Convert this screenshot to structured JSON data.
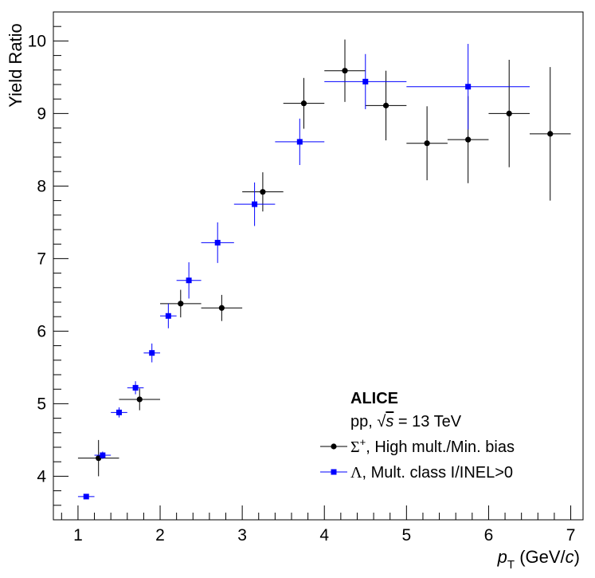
{
  "chart_data": {
    "type": "scatter",
    "title": "",
    "xlabel_main": "p",
    "xlabel_sub": "T",
    "xlabel_unit_pre": " (GeV/",
    "xlabel_unit_var": "c",
    "xlabel_unit_post": ")",
    "ylabel": "Yield Ratio",
    "xlim": [
      0.7,
      7.15
    ],
    "ylim": [
      3.4,
      10.4
    ],
    "x_major_ticks": [
      1,
      2,
      3,
      4,
      5,
      6,
      7
    ],
    "y_major_ticks": [
      4,
      5,
      6,
      7,
      8,
      9,
      10
    ],
    "x_tick_labels": [
      "1",
      "2",
      "3",
      "4",
      "5",
      "6",
      "7"
    ],
    "y_tick_labels": [
      "4",
      "5",
      "6",
      "7",
      "8",
      "9",
      "10"
    ],
    "series": [
      {
        "name": "Sigma+ High mult./Min. bias",
        "color": "#000000",
        "marker": "circle",
        "points": [
          {
            "x": 1.25,
            "y": 4.25,
            "xerr": 0.25,
            "yerr": 0.25
          },
          {
            "x": 1.75,
            "y": 5.06,
            "xerr": 0.25,
            "yerr": 0.15
          },
          {
            "x": 2.25,
            "y": 6.38,
            "xerr": 0.25,
            "yerr": 0.19
          },
          {
            "x": 2.75,
            "y": 6.32,
            "xerr": 0.25,
            "yerr": 0.18
          },
          {
            "x": 3.25,
            "y": 7.92,
            "xerr": 0.25,
            "yerr": 0.27
          },
          {
            "x": 3.75,
            "y": 9.14,
            "xerr": 0.25,
            "yerr": 0.35
          },
          {
            "x": 4.25,
            "y": 9.59,
            "xerr": 0.25,
            "yerr": 0.43
          },
          {
            "x": 4.75,
            "y": 9.11,
            "xerr": 0.25,
            "yerr": 0.48
          },
          {
            "x": 5.25,
            "y": 8.59,
            "xerr": 0.25,
            "yerr": 0.51
          },
          {
            "x": 5.75,
            "y": 8.64,
            "xerr": 0.25,
            "yerr": 0.6
          },
          {
            "x": 6.25,
            "y": 9.0,
            "xerr": 0.25,
            "yerr": 0.74
          },
          {
            "x": 6.75,
            "y": 8.72,
            "xerr": 0.25,
            "yerr": 0.92
          }
        ]
      },
      {
        "name": "Lambda Mult. class I/INEL>0",
        "color": "#0000ff",
        "marker": "square",
        "points": [
          {
            "x": 1.1,
            "y": 3.72,
            "xerr": 0.1,
            "yerr": 0.03
          },
          {
            "x": 1.3,
            "y": 4.29,
            "xerr": 0.1,
            "yerr": 0.05
          },
          {
            "x": 1.5,
            "y": 4.88,
            "xerr": 0.1,
            "yerr": 0.07
          },
          {
            "x": 1.7,
            "y": 5.22,
            "xerr": 0.1,
            "yerr": 0.09
          },
          {
            "x": 1.9,
            "y": 5.7,
            "xerr": 0.1,
            "yerr": 0.13
          },
          {
            "x": 2.1,
            "y": 6.21,
            "xerr": 0.1,
            "yerr": 0.17
          },
          {
            "x": 2.35,
            "y": 6.7,
            "xerr": 0.15,
            "yerr": 0.25
          },
          {
            "x": 2.7,
            "y": 7.22,
            "xerr": 0.2,
            "yerr": 0.28
          },
          {
            "x": 3.15,
            "y": 7.75,
            "xerr": 0.25,
            "yerr": 0.3
          },
          {
            "x": 3.7,
            "y": 8.61,
            "xerr": 0.3,
            "yerr": 0.32
          },
          {
            "x": 4.5,
            "y": 9.44,
            "xerr": 0.5,
            "yerr": 0.38
          },
          {
            "x": 5.75,
            "y": 9.37,
            "xerr": 0.75,
            "yerr": 0.59
          }
        ]
      }
    ],
    "legend": {
      "position": "bottom-right",
      "title": "ALICE",
      "subtitle_pre": "pp, ",
      "subtitle_sqrt": "√",
      "subtitle_var": "s",
      "subtitle_post": " = 13 TeV",
      "entries": [
        {
          "symbol": "Σ",
          "sup": "+",
          "text": ", High mult./Min. bias",
          "color": "#000000",
          "marker": "circle"
        },
        {
          "symbol": "Λ",
          "sup": "",
          "text": ",  Mult. class I/INEL>0",
          "color": "#0000ff",
          "marker": "square"
        }
      ]
    }
  }
}
